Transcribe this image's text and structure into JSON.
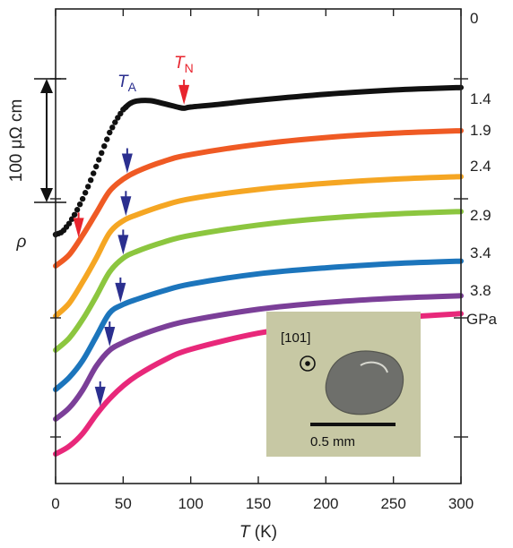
{
  "chart_data": {
    "type": "line",
    "xlabel": {
      "italic": "T",
      "unit": " (K)"
    },
    "ylabel": {
      "italic": "ρ"
    },
    "xlim": [
      0,
      300
    ],
    "xticks": [
      "0",
      "50",
      "100",
      "150",
      "200",
      "250",
      "300"
    ],
    "scale_bar": {
      "label": "100 μΩ cm"
    },
    "pressure_unit": "GPa",
    "annotations": {
      "TA": {
        "main": "T",
        "sub": "A",
        "color": "#2b2f8f"
      },
      "TN": {
        "main": "T",
        "sub": "N",
        "color": "#e8242e"
      }
    },
    "series": [
      {
        "name": "0",
        "color": "#111111",
        "style": "dots",
        "x": [
          0,
          5,
          10,
          15,
          20,
          25,
          30,
          35,
          40,
          45,
          50,
          55,
          60,
          70,
          80,
          90,
          95,
          100,
          120,
          150,
          200,
          250,
          300
        ],
        "y": [
          0,
          3,
          13,
          26,
          42,
          60,
          80,
          100,
          120,
          135,
          147,
          154,
          157,
          157.5,
          154,
          150,
          148.5,
          150,
          153,
          158,
          165,
          170,
          173
        ],
        "TN": 95,
        "TA": null
      },
      {
        "name": "1.4",
        "color": "#ef5a24",
        "style": "line",
        "x": [
          0,
          10,
          20,
          30,
          40,
          50,
          60,
          80,
          100,
          150,
          200,
          250,
          300
        ],
        "y": [
          0,
          13,
          36,
          62,
          88,
          102,
          111,
          123,
          131,
          143,
          151,
          156,
          159
        ],
        "TN": 17,
        "TA": 53
      },
      {
        "name": "1.9",
        "color": "#f5a623",
        "style": "line",
        "x": [
          0,
          10,
          20,
          30,
          40,
          50,
          60,
          80,
          100,
          150,
          200,
          250,
          300
        ],
        "y": [
          0,
          15,
          40,
          68,
          98,
          112,
          119,
          130,
          138,
          149,
          156,
          161,
          164
        ],
        "TN": null,
        "TA": 52
      },
      {
        "name": "2.4",
        "color": "#8cc63f",
        "style": "line",
        "x": [
          0,
          10,
          20,
          30,
          40,
          50,
          60,
          80,
          100,
          150,
          200,
          250,
          300
        ],
        "y": [
          0,
          14,
          36,
          63,
          92,
          108,
          116,
          127,
          135,
          147,
          155,
          160,
          163
        ],
        "TN": null,
        "TA": 50
      },
      {
        "name": "2.9",
        "color": "#1c75bc",
        "style": "line",
        "x": [
          0,
          10,
          20,
          30,
          40,
          50,
          60,
          80,
          100,
          150,
          200,
          250,
          300
        ],
        "y": [
          0,
          14,
          34,
          62,
          90,
          100,
          106,
          116,
          124,
          136,
          143,
          148,
          151
        ],
        "TN": null,
        "TA": 48
      },
      {
        "name": "3.4",
        "color": "#7b3f98",
        "style": "line",
        "x": [
          0,
          10,
          20,
          30,
          40,
          50,
          60,
          80,
          100,
          150,
          200,
          250,
          300
        ],
        "y": [
          0,
          13,
          34,
          62,
          81,
          90,
          97,
          108,
          116,
          129,
          137,
          142,
          145
        ],
        "TN": null,
        "TA": 40
      },
      {
        "name": "3.8",
        "color": "#e8287a",
        "style": "line",
        "x": [
          0,
          10,
          20,
          30,
          40,
          50,
          60,
          80,
          100,
          150,
          200,
          250,
          300
        ],
        "y": [
          0,
          9,
          24,
          46,
          65,
          80,
          92,
          110,
          123,
          142,
          153,
          160,
          165
        ],
        "TN": null,
        "TA": 33
      }
    ],
    "inset": {
      "direction_label": "[101]",
      "scale_label": "0.5 mm",
      "background": "#c7c8a4"
    }
  }
}
